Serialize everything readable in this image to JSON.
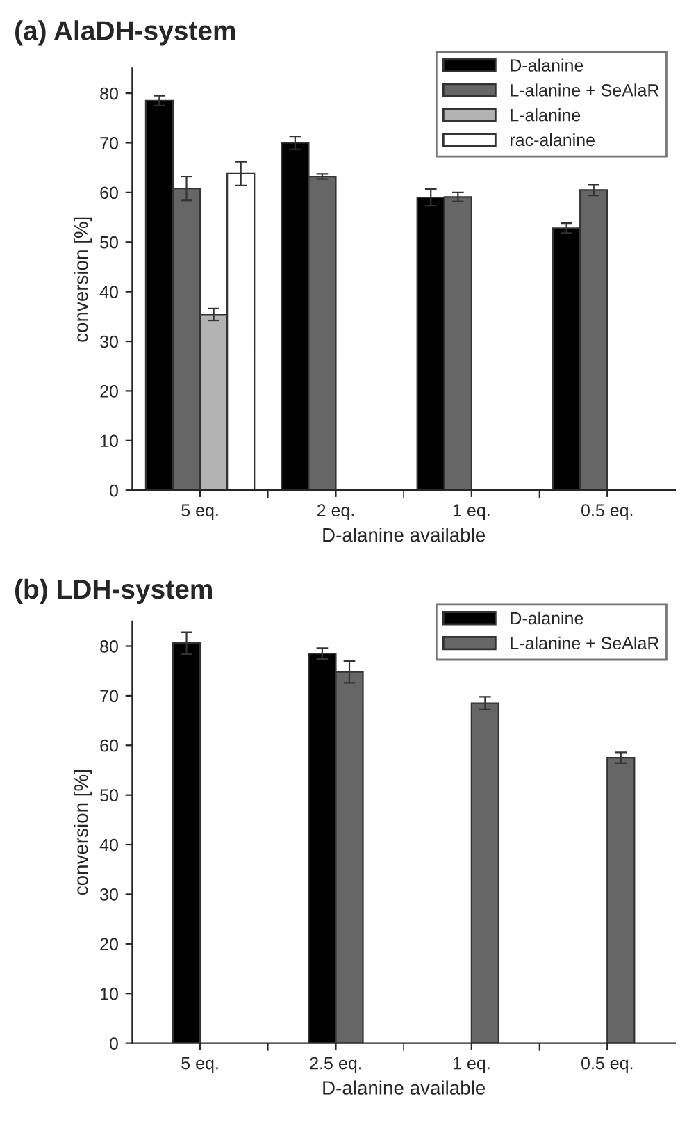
{
  "chart_data": [
    {
      "type": "bar",
      "title": "(a) AlaDH-system",
      "xlabel": "D-alanine available",
      "ylabel": "conversion [%]",
      "categories": [
        "5 eq.",
        "2 eq.",
        "1 eq.",
        "0.5 eq."
      ],
      "ylim": [
        0,
        85
      ],
      "yticks": [
        0,
        10,
        20,
        30,
        40,
        50,
        60,
        70,
        80
      ],
      "legend": "top right",
      "grid": false,
      "series": [
        {
          "name": "D-alanine",
          "color": "#000000",
          "values": [
            78.5,
            70,
            59,
            52.8
          ],
          "errors": [
            1,
            1.3,
            1.7,
            1
          ]
        },
        {
          "name": "L-alanine + SeAlaR",
          "color": "#666666",
          "values": [
            60.8,
            63.2,
            59.1,
            60.5
          ],
          "errors": [
            2.4,
            0.5,
            0.9,
            1.1
          ]
        },
        {
          "name": "L-alanine",
          "color": "#b3b3b3",
          "values": [
            35.4,
            null,
            null,
            null
          ],
          "errors": [
            1.2,
            null,
            null,
            null
          ]
        },
        {
          "name": "rac-alanine",
          "color": "#ffffff",
          "values": [
            63.8,
            null,
            null,
            null
          ],
          "errors": [
            2.4,
            null,
            null,
            null
          ]
        }
      ]
    },
    {
      "type": "bar",
      "title": "(b) LDH-system",
      "xlabel": "D-alanine available",
      "ylabel": "conversion [%]",
      "categories": [
        "5 eq.",
        "2.5 eq.",
        "1 eq.",
        "0.5 eq."
      ],
      "ylim": [
        0,
        85
      ],
      "yticks": [
        0,
        10,
        20,
        30,
        40,
        50,
        60,
        70,
        80
      ],
      "legend": "top right",
      "grid": false,
      "series": [
        {
          "name": "D-alanine",
          "color": "#000000",
          "values": [
            80.6,
            78.5,
            null,
            null
          ],
          "errors": [
            2.2,
            1.1,
            null,
            null
          ]
        },
        {
          "name": "L-alanine + SeAlaR",
          "color": "#666666",
          "values": [
            null,
            74.8,
            68.5,
            57.5
          ],
          "errors": [
            null,
            2.2,
            1.3,
            1.1
          ]
        }
      ]
    }
  ]
}
